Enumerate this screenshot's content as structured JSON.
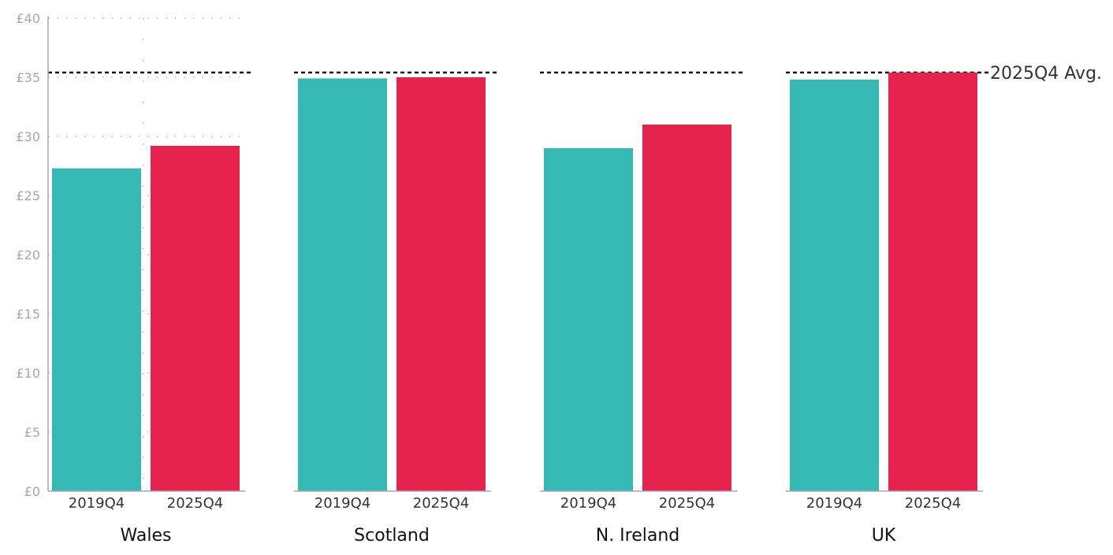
{
  "chart_data": {
    "type": "bar",
    "categories": [
      "Wales",
      "Scotland",
      "N. Ireland",
      "UK"
    ],
    "series": [
      {
        "name": "2019Q4",
        "values": [
          27.3,
          34.9,
          29.0,
          34.8
        ]
      },
      {
        "name": "2025Q4",
        "values": [
          29.2,
          35.0,
          31.0,
          35.4
        ]
      }
    ],
    "bar_labels": [
      "2019Q4",
      "2025Q4"
    ],
    "reference_line": {
      "label": "2025Q4 Avg.",
      "value": 35.4
    },
    "ylim": [
      0,
      40
    ],
    "yticks": [
      0,
      5,
      10,
      15,
      20,
      25,
      30,
      35,
      40
    ],
    "ytick_labels": [
      "£0",
      "£5",
      "£10",
      "£15",
      "£20",
      "£25",
      "£30",
      "£35",
      "£40"
    ],
    "colors": {
      "2019Q4": "#36b8b4",
      "2025Q4": "#e6234d",
      "axis": "#a9a4b8"
    },
    "grid": "dotted"
  }
}
